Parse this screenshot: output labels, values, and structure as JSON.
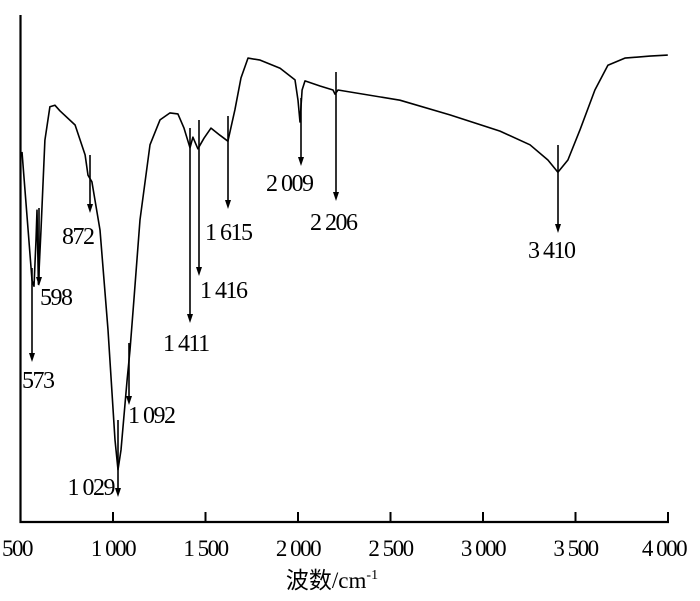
{
  "chart_data": {
    "type": "line",
    "title": "",
    "xlabel": "波数/cm",
    "xlabel_superscript": "-1",
    "ylabel": "",
    "xlim": [
      500,
      4000
    ],
    "ylim": [
      0,
      100
    ],
    "x_reversed": false,
    "y_ticks_shown": false,
    "grid": false,
    "legend": "none",
    "line_color": "#000000",
    "x_ticks": [
      500,
      1000,
      1500,
      2000,
      2500,
      3000,
      3500,
      4000
    ],
    "x_tick_labels": [
      "500",
      "1 000",
      "1 500",
      "2 000",
      "2 500",
      "3 000",
      "3 500",
      "4 000"
    ],
    "series": [
      {
        "x": [
          508,
          541,
          562,
          573,
          584,
          589,
          597,
          611,
          632,
          659,
          686,
          713,
          795,
          849,
          865,
          886,
          930,
          973,
          1011,
          1027,
          1043,
          1076,
          1092,
          1113,
          1146,
          1200,
          1254,
          1308,
          1351,
          1384,
          1416,
          1432,
          1459,
          1492,
          1530,
          1578,
          1621,
          1659,
          1692,
          1730,
          1795,
          1903,
          1984,
          2000,
          2011,
          2022,
          2038,
          2119,
          2189,
          2200,
          2216,
          2551,
          2821,
          3092,
          3254,
          3351,
          3405,
          3459,
          3524,
          3605,
          3675,
          3767,
          3902,
          3999
        ],
        "y": [
          73.0,
          57.6,
          47.7,
          46.5,
          55.6,
          61.5,
          46.9,
          57.6,
          75.3,
          81.9,
          82.2,
          81.1,
          78.3,
          72.4,
          68.4,
          67.1,
          57.6,
          37.9,
          16.2,
          10.3,
          14.2,
          28.0,
          33.9,
          43.8,
          59.6,
          74.4,
          79.3,
          80.7,
          80.5,
          77.7,
          73.8,
          75.9,
          73.6,
          75.7,
          77.7,
          76.3,
          75.1,
          81.3,
          87.6,
          91.5,
          91.1,
          89.5,
          87.2,
          83.2,
          78.9,
          85.2,
          87.0,
          86.0,
          85.2,
          84.4,
          85.2,
          83.2,
          80.3,
          77.1,
          74.4,
          71.4,
          69.0,
          71.4,
          77.3,
          85.2,
          90.1,
          91.5,
          91.9,
          92.1
        ]
      }
    ],
    "annotations": [
      {
        "label": "573",
        "wavenumber": 573
      },
      {
        "label": "598",
        "wavenumber": 598
      },
      {
        "label": "872",
        "wavenumber": 872
      },
      {
        "label": "1 029",
        "wavenumber": 1029
      },
      {
        "label": "1 092",
        "wavenumber": 1092
      },
      {
        "label": "1 411",
        "wavenumber": 1411
      },
      {
        "label": "1 416",
        "wavenumber": 1416
      },
      {
        "label": "1 615",
        "wavenumber": 1615
      },
      {
        "label": "2 009",
        "wavenumber": 2009
      },
      {
        "label": "2 206",
        "wavenumber": 2206
      },
      {
        "label": "3 410",
        "wavenumber": 3410
      }
    ]
  }
}
